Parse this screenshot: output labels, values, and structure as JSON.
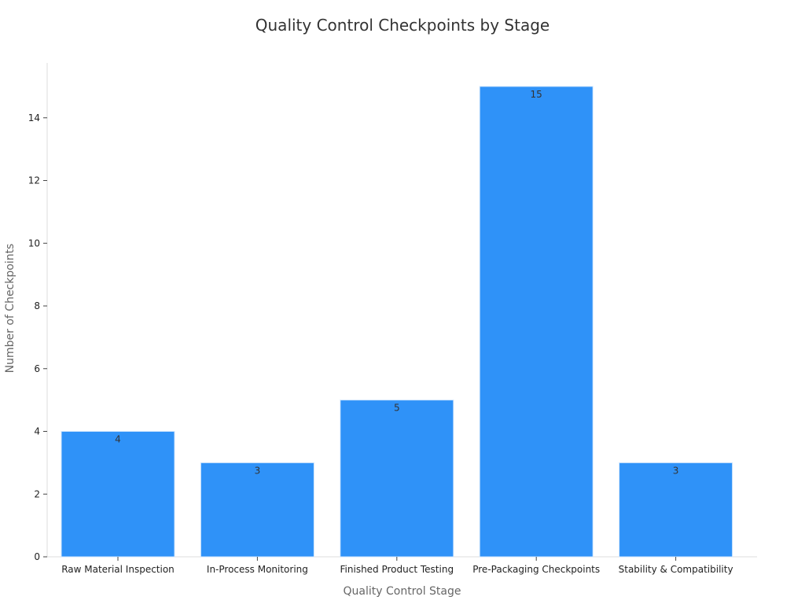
{
  "chart_data": {
    "type": "bar",
    "title": "Quality Control Checkpoints by Stage",
    "xlabel": "Quality Control Stage",
    "ylabel": "Number of Checkpoints",
    "categories": [
      "Raw Material Inspection",
      "In-Process Monitoring",
      "Finished Product Testing",
      "Pre-Packaging Checkpoints",
      "Stability & Compatibility"
    ],
    "values": [
      4,
      3,
      5,
      15,
      3
    ],
    "ylim": [
      0,
      15.75
    ],
    "yticks": [
      0,
      2,
      4,
      6,
      8,
      10,
      12,
      14
    ],
    "grid": false,
    "legend": "none",
    "bar_color": "#2f92f8",
    "bar_edge_color": "#d0e6fd"
  }
}
